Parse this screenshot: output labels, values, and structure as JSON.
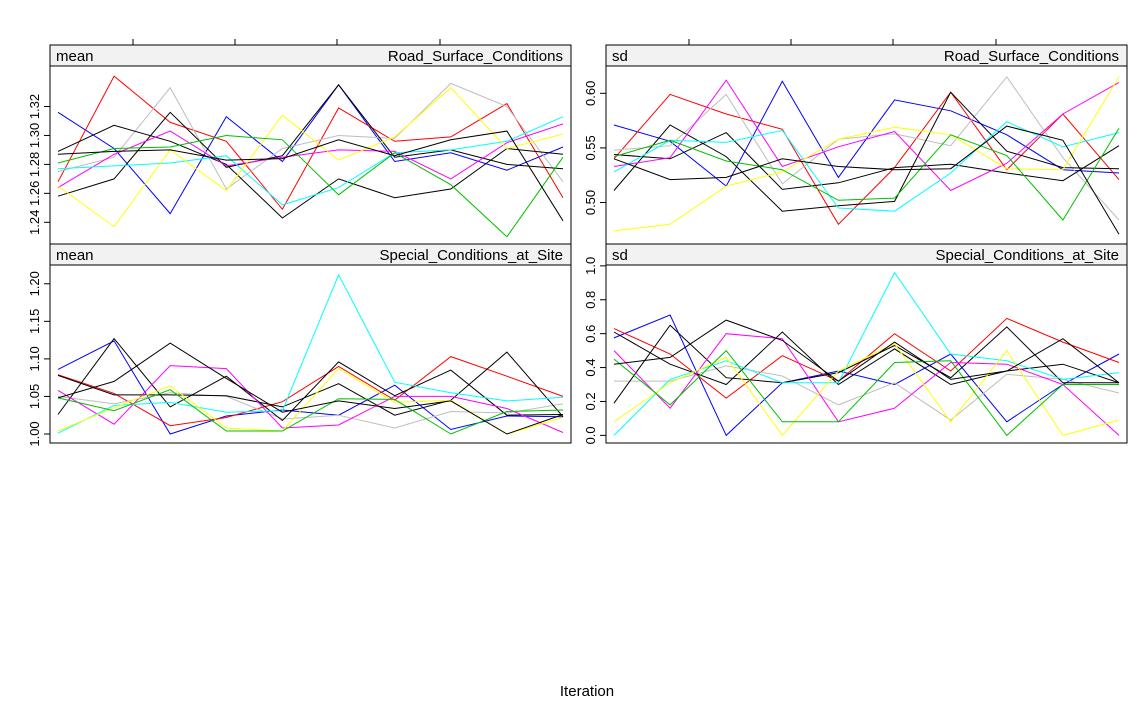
{
  "chart_data": {
    "type": "line",
    "xlabel": "Iteration",
    "series_colors": [
      "#0000FF",
      "#FF0000",
      "#BEBEBE",
      "#000000",
      "#000000",
      "#FF00FF",
      "#00FFFF",
      "#FFFF00",
      "#00C000",
      "#000000"
    ],
    "panels": [
      {
        "id": "mean-road",
        "stat": "mean",
        "variable": "Road_Surface_Conditions",
        "yticks": [
          1.24,
          1.26,
          1.28,
          1.3,
          1.32
        ],
        "yticklabels": [
          "1.24",
          "1.26",
          "1.28",
          "1.30",
          "1.32"
        ],
        "ylim": [
          1.225,
          1.348
        ],
        "series": [
          [
            1.316,
            1.291,
            1.246,
            1.313,
            1.282,
            1.335,
            1.282,
            1.288,
            1.276,
            1.292
          ],
          [
            1.268,
            1.341,
            1.309,
            1.296,
            1.249,
            1.319,
            1.296,
            1.299,
            1.322,
            1.257
          ],
          [
            1.275,
            1.285,
            1.333,
            1.263,
            1.291,
            1.3,
            1.298,
            1.336,
            1.32,
            1.268
          ],
          [
            1.289,
            1.307,
            1.296,
            1.28,
            1.243,
            1.27,
            1.257,
            1.263,
            1.291,
            1.287
          ],
          [
            1.258,
            1.27,
            1.316,
            1.278,
            1.286,
            1.335,
            1.285,
            1.29,
            1.28,
            1.277
          ],
          [
            1.264,
            1.287,
            1.303,
            1.279,
            1.285,
            1.29,
            1.289,
            1.27,
            1.295,
            1.308
          ],
          [
            1.277,
            1.279,
            1.281,
            1.286,
            1.252,
            1.264,
            1.288,
            1.29,
            1.296,
            1.313
          ],
          [
            1.265,
            1.237,
            1.29,
            1.262,
            1.314,
            1.283,
            1.299,
            1.333,
            1.291,
            1.301
          ],
          [
            1.281,
            1.291,
            1.292,
            1.3,
            1.297,
            1.259,
            1.288,
            1.266,
            1.23,
            1.285
          ],
          [
            1.287,
            1.289,
            1.29,
            1.283,
            1.284,
            1.297,
            1.286,
            1.297,
            1.303,
            1.241
          ]
        ]
      },
      {
        "id": "sd-road",
        "stat": "sd",
        "variable": "Road_Surface_Conditions",
        "yticks": [
          0.5,
          0.55,
          0.6
        ],
        "yticklabels": [
          "0.50",
          "0.55",
          "0.60"
        ],
        "ylim": [
          0.462,
          0.625
        ],
        "series": [
          [
            0.571,
            0.556,
            0.515,
            0.611,
            0.523,
            0.594,
            0.584,
            0.562,
            0.53,
            0.527
          ],
          [
            0.54,
            0.599,
            0.581,
            0.567,
            0.48,
            0.532,
            0.601,
            0.53,
            0.581,
            0.521
          ],
          [
            0.548,
            0.552,
            0.599,
            0.517,
            0.558,
            0.563,
            0.552,
            0.615,
            0.541,
            0.484
          ],
          [
            0.511,
            0.571,
            0.542,
            0.492,
            0.497,
            0.501,
            0.601,
            0.547,
            0.532,
            0.531
          ],
          [
            0.544,
            0.54,
            0.564,
            0.512,
            0.518,
            0.532,
            0.535,
            0.527,
            0.52,
            0.552
          ],
          [
            0.533,
            0.541,
            0.612,
            0.533,
            0.551,
            0.565,
            0.511,
            0.536,
            0.581,
            0.61
          ],
          [
            0.528,
            0.557,
            0.555,
            0.566,
            0.495,
            0.492,
            0.527,
            0.574,
            0.551,
            0.564
          ],
          [
            0.474,
            0.48,
            0.515,
            0.528,
            0.558,
            0.569,
            0.562,
            0.531,
            0.53,
            0.615
          ],
          [
            0.542,
            0.557,
            0.538,
            0.53,
            0.502,
            0.504,
            0.562,
            0.543,
            0.484,
            0.568
          ],
          [
            0.54,
            0.521,
            0.523,
            0.54,
            0.533,
            0.53,
            0.531,
            0.57,
            0.557,
            0.471
          ]
        ]
      },
      {
        "id": "mean-special",
        "stat": "mean",
        "variable": "Special_Conditions_at_Site",
        "yticks": [
          1.0,
          1.05,
          1.1,
          1.15,
          1.2
        ],
        "yticklabels": [
          "1.00",
          "1.05",
          "1.10",
          "1.15",
          "1.20"
        ],
        "ylim": [
          0.988,
          1.225
        ],
        "series": [
          [
            1.086,
            1.124,
            1.0,
            1.024,
            1.032,
            1.025,
            1.065,
            1.006,
            1.024,
            1.023
          ],
          [
            1.079,
            1.054,
            1.011,
            1.022,
            1.043,
            1.09,
            1.045,
            1.103,
            1.077,
            1.05
          ],
          [
            1.05,
            1.04,
            1.055,
            1.05,
            1.02,
            1.025,
            1.008,
            1.03,
            1.028,
            1.04
          ],
          [
            1.026,
            1.127,
            1.036,
            1.077,
            1.018,
            1.096,
            1.051,
            1.085,
            1.025,
            1.026
          ],
          [
            1.078,
            1.052,
            1.052,
            1.051,
            1.036,
            1.067,
            1.025,
            1.045,
            1.109,
            1.023
          ],
          [
            1.058,
            1.013,
            1.091,
            1.087,
            1.008,
            1.012,
            1.05,
            1.05,
            1.034,
            1.002
          ],
          [
            1.001,
            1.038,
            1.042,
            1.029,
            1.031,
            1.212,
            1.069,
            1.055,
            1.044,
            1.049
          ],
          [
            1.004,
            1.035,
            1.064,
            1.008,
            1.004,
            1.087,
            1.042,
            1.045,
            1.0,
            1.022
          ],
          [
            1.048,
            1.031,
            1.059,
            1.004,
            1.004,
            1.047,
            1.046,
            1.0,
            1.03,
            1.032
          ],
          [
            1.048,
            1.07,
            1.121,
            1.074,
            1.029,
            1.044,
            1.034,
            1.044,
            1.0,
            1.026
          ]
        ]
      },
      {
        "id": "sd-special",
        "stat": "sd",
        "variable": "Special_Conditions_at_Site",
        "yticks": [
          0.0,
          0.2,
          0.4,
          0.6,
          0.8,
          1.0
        ],
        "yticklabels": [
          "0.0",
          "0.2",
          "0.4",
          "0.6",
          "0.8",
          "1.0"
        ],
        "ylim": [
          -0.045,
          1.005
        ],
        "series": [
          [
            0.575,
            0.71,
            0.0,
            0.31,
            0.38,
            0.3,
            0.48,
            0.08,
            0.3,
            0.48
          ],
          [
            0.63,
            0.48,
            0.22,
            0.47,
            0.32,
            0.6,
            0.38,
            0.69,
            0.55,
            0.43
          ],
          [
            0.32,
            0.32,
            0.41,
            0.35,
            0.18,
            0.31,
            0.09,
            0.36,
            0.33,
            0.25
          ],
          [
            0.19,
            0.65,
            0.34,
            0.31,
            0.37,
            0.53,
            0.34,
            0.64,
            0.31,
            0.31
          ],
          [
            0.61,
            0.42,
            0.3,
            0.61,
            0.3,
            0.51,
            0.3,
            0.38,
            0.42,
            0.31
          ],
          [
            0.5,
            0.16,
            0.6,
            0.57,
            0.08,
            0.16,
            0.43,
            0.42,
            0.3,
            0.0
          ],
          [
            0.0,
            0.33,
            0.44,
            0.31,
            0.31,
            0.96,
            0.48,
            0.44,
            0.33,
            0.37
          ],
          [
            0.08,
            0.31,
            0.46,
            0.0,
            0.38,
            0.54,
            0.08,
            0.5,
            0.0,
            0.09
          ],
          [
            0.45,
            0.18,
            0.5,
            0.08,
            0.08,
            0.43,
            0.44,
            0.0,
            0.3,
            0.3
          ],
          [
            0.42,
            0.46,
            0.68,
            0.56,
            0.32,
            0.55,
            0.33,
            0.38,
            0.57,
            0.31
          ]
        ]
      }
    ]
  }
}
